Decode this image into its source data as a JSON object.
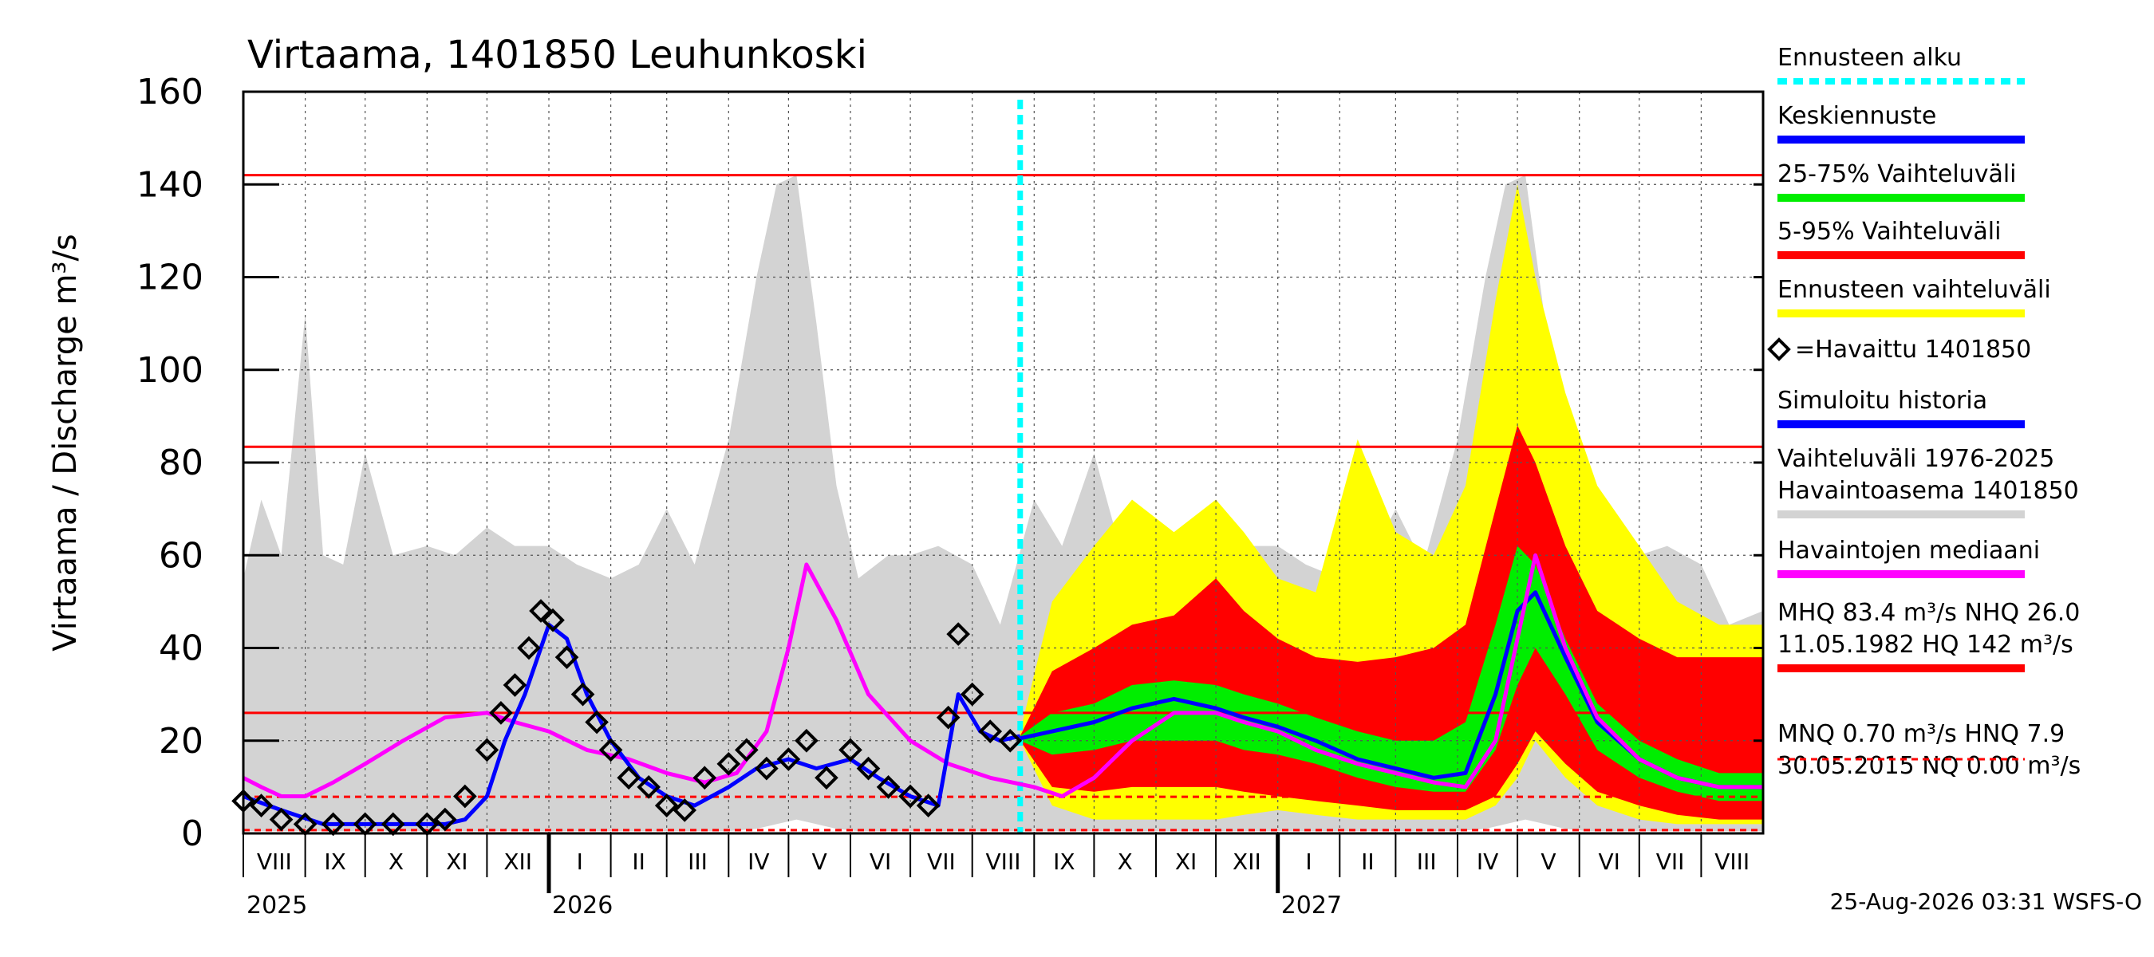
{
  "chart_data": {
    "type": "area",
    "title": "Virtaama, 1401850 Leuhunkoski",
    "ylabel": "Virtaama / Discharge    m³/s",
    "ylim": [
      0,
      160
    ],
    "yticks": [
      0,
      20,
      40,
      60,
      80,
      100,
      120,
      140,
      160
    ],
    "grid": true,
    "legend_position": "right",
    "x_start": "2025-08-01",
    "x_end": "2027-09-01",
    "forecast_start": "2026-08-25",
    "months": [
      {
        "label": "VIII",
        "start": "2025-08-01"
      },
      {
        "label": "IX",
        "start": "2025-09-01"
      },
      {
        "label": "X",
        "start": "2025-10-01"
      },
      {
        "label": "XI",
        "start": "2025-11-01"
      },
      {
        "label": "XII",
        "start": "2025-12-01"
      },
      {
        "label": "I",
        "start": "2026-01-01"
      },
      {
        "label": "II",
        "start": "2026-02-01"
      },
      {
        "label": "III",
        "start": "2026-03-01"
      },
      {
        "label": "IV",
        "start": "2026-04-01"
      },
      {
        "label": "V",
        "start": "2026-05-01"
      },
      {
        "label": "VI",
        "start": "2026-06-01"
      },
      {
        "label": "VII",
        "start": "2026-07-01"
      },
      {
        "label": "VIII",
        "start": "2026-08-01"
      },
      {
        "label": "IX",
        "start": "2026-09-01"
      },
      {
        "label": "X",
        "start": "2026-10-01"
      },
      {
        "label": "XI",
        "start": "2026-11-01"
      },
      {
        "label": "XII",
        "start": "2026-12-01"
      },
      {
        "label": "I",
        "start": "2027-01-01"
      },
      {
        "label": "II",
        "start": "2027-02-01"
      },
      {
        "label": "III",
        "start": "2027-03-01"
      },
      {
        "label": "IV",
        "start": "2027-04-01"
      },
      {
        "label": "V",
        "start": "2027-05-01"
      },
      {
        "label": "VI",
        "start": "2027-06-01"
      },
      {
        "label": "VII",
        "start": "2027-07-01"
      },
      {
        "label": "VIII",
        "start": "2027-08-01"
      }
    ],
    "years": [
      {
        "label": "2025",
        "date": "2025-08-01"
      },
      {
        "label": "2026",
        "date": "2026-01-01"
      },
      {
        "label": "2027",
        "date": "2027-01-01"
      }
    ],
    "reference_lines": [
      {
        "name": "HQ",
        "value": 142,
        "color": "#ff0000",
        "style": "solid"
      },
      {
        "name": "MHQ",
        "value": 83.4,
        "color": "#ff0000",
        "style": "solid"
      },
      {
        "name": "NHQ",
        "value": 26.0,
        "color": "#ff0000",
        "style": "solid"
      },
      {
        "name": "HNQ",
        "value": 7.9,
        "color": "#ff0000",
        "style": "dashed"
      },
      {
        "name": "MNQ",
        "value": 0.7,
        "color": "#ff0000",
        "style": "dashed"
      }
    ],
    "series": [
      {
        "name": "Vaihteluväli 1976-2025 Havaintoasema 1401850",
        "kind": "band",
        "color": "#d3d3d3",
        "x": [
          "2025-08-01",
          "2025-08-10",
          "2025-08-20",
          "2025-09-01",
          "2025-09-10",
          "2025-09-20",
          "2025-10-01",
          "2025-10-15",
          "2025-11-01",
          "2025-11-15",
          "2025-12-01",
          "2025-12-15",
          "2026-01-01",
          "2026-01-15",
          "2026-02-01",
          "2026-02-15",
          "2026-03-01",
          "2026-03-15",
          "2026-04-01",
          "2026-04-15",
          "2026-04-25",
          "2026-05-05",
          "2026-05-15",
          "2026-05-25",
          "2026-06-05",
          "2026-06-20",
          "2026-07-01",
          "2026-07-15",
          "2026-08-01",
          "2026-08-15",
          "2026-09-01",
          "2026-09-15",
          "2026-10-01",
          "2026-10-15",
          "2026-11-01",
          "2026-11-15",
          "2026-12-01",
          "2026-12-15",
          "2027-01-01",
          "2027-01-15",
          "2027-02-01",
          "2027-02-15",
          "2027-03-01",
          "2027-03-15",
          "2027-04-01",
          "2027-04-15",
          "2027-04-25",
          "2027-05-05",
          "2027-05-15",
          "2027-05-25",
          "2027-06-05",
          "2027-06-20",
          "2027-07-01",
          "2027-07-15",
          "2027-08-01",
          "2027-08-15",
          "2027-09-01"
        ],
        "low": [
          0.5,
          0.5,
          0.5,
          0.5,
          0.5,
          0.5,
          0.5,
          0.5,
          0.5,
          0.5,
          0.5,
          0.5,
          0.5,
          0.5,
          0.5,
          0.5,
          0.5,
          0.5,
          0.5,
          1,
          2,
          3,
          2,
          1,
          0.5,
          0.5,
          0.5,
          0.5,
          0.5,
          0.5,
          0.5,
          0.5,
          0.5,
          0.5,
          0.5,
          0.5,
          0.5,
          0.5,
          0.5,
          0.5,
          0.5,
          0.5,
          0.5,
          0.5,
          0.5,
          1,
          2,
          3,
          2,
          1,
          0.5,
          0.5,
          0.5,
          0.5,
          0.5,
          0.5,
          0.5
        ],
        "high": [
          55,
          72,
          60,
          112,
          60,
          58,
          82,
          60,
          62,
          60,
          66,
          62,
          62,
          58,
          55,
          58,
          70,
          58,
          85,
          120,
          140,
          142,
          110,
          75,
          55,
          60,
          60,
          62,
          58,
          45,
          72,
          62,
          82,
          60,
          62,
          60,
          66,
          62,
          62,
          58,
          55,
          58,
          70,
          58,
          85,
          120,
          140,
          142,
          110,
          75,
          55,
          60,
          60,
          62,
          58,
          45,
          48
        ]
      },
      {
        "name": "Ennusteen vaihteluväli",
        "kind": "band",
        "color": "#ffff00",
        "x": [
          "2026-08-25",
          "2026-09-10",
          "2026-10-01",
          "2026-10-20",
          "2026-11-10",
          "2026-12-01",
          "2026-12-15",
          "2027-01-01",
          "2027-01-20",
          "2027-02-10",
          "2027-03-01",
          "2027-03-20",
          "2027-04-05",
          "2027-04-20",
          "2027-05-01",
          "2027-05-10",
          "2027-05-25",
          "2027-06-10",
          "2027-07-01",
          "2027-07-20",
          "2027-08-10",
          "2027-09-01"
        ],
        "low": [
          20,
          6,
          3,
          3,
          3,
          3,
          4,
          5,
          4,
          3,
          3,
          3,
          3,
          6,
          12,
          20,
          12,
          6,
          3,
          2,
          2,
          2
        ],
        "high": [
          22,
          50,
          62,
          72,
          65,
          72,
          65,
          55,
          52,
          85,
          65,
          60,
          75,
          115,
          140,
          120,
          95,
          75,
          62,
          50,
          45,
          45
        ]
      },
      {
        "name": "5-95% Vaihteluväli",
        "kind": "band",
        "color": "#ff0000",
        "x": [
          "2026-08-25",
          "2026-09-10",
          "2026-10-01",
          "2026-10-20",
          "2026-11-10",
          "2026-12-01",
          "2026-12-15",
          "2027-01-01",
          "2027-01-20",
          "2027-02-10",
          "2027-03-01",
          "2027-03-20",
          "2027-04-05",
          "2027-04-20",
          "2027-05-01",
          "2027-05-10",
          "2027-05-25",
          "2027-06-10",
          "2027-07-01",
          "2027-07-20",
          "2027-08-10",
          "2027-09-01"
        ],
        "low": [
          20,
          10,
          9,
          10,
          10,
          10,
          9,
          8,
          7,
          6,
          5,
          5,
          5,
          8,
          15,
          22,
          15,
          9,
          6,
          4,
          3,
          3
        ],
        "high": [
          21,
          35,
          40,
          45,
          47,
          55,
          48,
          42,
          38,
          37,
          38,
          40,
          45,
          70,
          88,
          80,
          62,
          48,
          42,
          38,
          38,
          38
        ]
      },
      {
        "name": "25-75% Vaihteluväli",
        "kind": "band",
        "color": "#00ee00",
        "x": [
          "2026-08-25",
          "2026-09-10",
          "2026-10-01",
          "2026-10-20",
          "2026-11-10",
          "2026-12-01",
          "2026-12-15",
          "2027-01-01",
          "2027-01-20",
          "2027-02-10",
          "2027-03-01",
          "2027-03-20",
          "2027-04-05",
          "2027-04-20",
          "2027-05-01",
          "2027-05-10",
          "2027-05-25",
          "2027-06-10",
          "2027-07-01",
          "2027-07-20",
          "2027-08-10",
          "2027-09-01"
        ],
        "low": [
          20,
          17,
          18,
          20,
          20,
          20,
          18,
          17,
          15,
          12,
          10,
          9,
          9,
          18,
          32,
          40,
          30,
          18,
          12,
          9,
          7,
          7
        ],
        "high": [
          21,
          26,
          28,
          32,
          33,
          32,
          30,
          28,
          25,
          22,
          20,
          20,
          24,
          45,
          62,
          58,
          42,
          28,
          20,
          16,
          13,
          13
        ]
      },
      {
        "name": "Keskiennuste",
        "kind": "line",
        "color": "#0000ff",
        "x": [
          "2026-08-25",
          "2026-09-10",
          "2026-10-01",
          "2026-10-20",
          "2026-11-10",
          "2026-12-01",
          "2026-12-15",
          "2027-01-01",
          "2027-01-20",
          "2027-02-10",
          "2027-03-01",
          "2027-03-20",
          "2027-04-05",
          "2027-04-20",
          "2027-05-01",
          "2027-05-10",
          "2027-05-25",
          "2027-06-10",
          "2027-07-01",
          "2027-07-20",
          "2027-08-10",
          "2027-09-01"
        ],
        "y": [
          20.5,
          22,
          24,
          27,
          29,
          27,
          25,
          23,
          20,
          16,
          14,
          12,
          13,
          30,
          48,
          52,
          38,
          24,
          16,
          12,
          10,
          10
        ]
      },
      {
        "name": "Havaintojen mediaani",
        "kind": "line",
        "color": "#ff00ff",
        "x": [
          "2025-08-01",
          "2025-08-10",
          "2025-08-20",
          "2025-09-01",
          "2025-09-15",
          "2025-10-01",
          "2025-10-20",
          "2025-11-10",
          "2025-12-01",
          "2025-12-15",
          "2026-01-01",
          "2026-01-20",
          "2026-02-10",
          "2026-03-01",
          "2026-03-20",
          "2026-04-05",
          "2026-04-20",
          "2026-05-01",
          "2026-05-10",
          "2026-05-25",
          "2026-06-10",
          "2026-07-01",
          "2026-07-20",
          "2026-08-10",
          "2026-09-01",
          "2026-09-15",
          "2026-10-01",
          "2026-10-20",
          "2026-11-10",
          "2026-12-01",
          "2026-12-15",
          "2027-01-01",
          "2027-01-20",
          "2027-02-10",
          "2027-03-01",
          "2027-03-20",
          "2027-04-05",
          "2027-04-20",
          "2027-05-01",
          "2027-05-10",
          "2027-05-25",
          "2027-06-10",
          "2027-07-01",
          "2027-07-20",
          "2027-08-10",
          "2027-09-01"
        ],
        "y": [
          12,
          10,
          8,
          8,
          11,
          15,
          20,
          25,
          26,
          24,
          22,
          18,
          16,
          13,
          11,
          13,
          22,
          40,
          58,
          46,
          30,
          20,
          15,
          12,
          10,
          8,
          12,
          20,
          26,
          26,
          24,
          22,
          18,
          15,
          13,
          11,
          10,
          20,
          42,
          60,
          40,
          25,
          16,
          12,
          10,
          10
        ]
      },
      {
        "name": "Simuloitu historia",
        "kind": "line",
        "color": "#0000ff",
        "x": [
          "2025-08-01",
          "2025-08-20",
          "2025-09-10",
          "2025-10-01",
          "2025-10-20",
          "2025-11-10",
          "2025-11-20",
          "2025-12-01",
          "2025-12-10",
          "2025-12-20",
          "2026-01-01",
          "2026-01-10",
          "2026-01-20",
          "2026-02-01",
          "2026-02-15",
          "2026-03-01",
          "2026-03-15",
          "2026-04-01",
          "2026-04-15",
          "2026-05-01",
          "2026-05-15",
          "2026-06-01",
          "2026-06-15",
          "2026-07-01",
          "2026-07-15",
          "2026-07-25",
          "2026-08-05",
          "2026-08-15",
          "2026-08-25"
        ],
        "y": [
          8,
          5,
          2,
          2,
          2,
          2,
          3,
          8,
          20,
          30,
          45,
          42,
          30,
          20,
          12,
          8,
          6,
          10,
          14,
          16,
          14,
          16,
          12,
          8,
          6,
          30,
          22,
          20,
          21
        ]
      },
      {
        "name": "Havaittu 1401850",
        "kind": "scatter",
        "color": "#000000",
        "x": [
          "2025-08-01",
          "2025-08-10",
          "2025-08-20",
          "2025-09-01",
          "2025-09-15",
          "2025-10-01",
          "2025-10-15",
          "2025-11-01",
          "2025-11-10",
          "2025-11-20",
          "2025-12-01",
          "2025-12-08",
          "2025-12-15",
          "2025-12-22",
          "2025-12-28",
          "2026-01-03",
          "2026-01-10",
          "2026-01-18",
          "2026-01-25",
          "2026-02-01",
          "2026-02-10",
          "2026-02-20",
          "2026-03-01",
          "2026-03-10",
          "2026-03-20",
          "2026-04-01",
          "2026-04-10",
          "2026-04-20",
          "2026-05-01",
          "2026-05-10",
          "2026-05-20",
          "2026-06-01",
          "2026-06-10",
          "2026-06-20",
          "2026-07-01",
          "2026-07-10",
          "2026-07-20",
          "2026-07-25",
          "2026-08-01",
          "2026-08-10",
          "2026-08-20"
        ],
        "y": [
          7,
          6,
          3,
          2,
          2,
          2,
          2,
          2,
          3,
          8,
          18,
          26,
          32,
          40,
          48,
          46,
          38,
          30,
          24,
          18,
          12,
          10,
          6,
          5,
          12,
          15,
          18,
          14,
          16,
          20,
          12,
          18,
          14,
          10,
          8,
          6,
          25,
          43,
          30,
          22,
          20
        ]
      }
    ],
    "legend": [
      {
        "label": "Ennusteen alku",
        "color": "#00ffff",
        "style": "dotted"
      },
      {
        "label": "Keskiennuste",
        "color": "#0000ff",
        "style": "solid"
      },
      {
        "label": "25-75% Vaihteluväli",
        "color": "#00ee00",
        "style": "solid"
      },
      {
        "label": "5-95% Vaihteluväli",
        "color": "#ff0000",
        "style": "solid"
      },
      {
        "label": "Ennusteen vaihteluväli",
        "color": "#ffff00",
        "style": "solid"
      },
      {
        "label": "=Havaittu 1401850",
        "color": "#000000",
        "style": "marker"
      },
      {
        "label": "Simuloitu historia",
        "color": "#0000ff",
        "style": "solid"
      },
      {
        "label": "Vaihteluväli 1976-2025\nHavaintoasema 1401850",
        "color": "#d3d3d3",
        "style": "solid"
      },
      {
        "label": "Havaintojen mediaani",
        "color": "#ff00ff",
        "style": "solid"
      },
      {
        "label": "MHQ 83.4 m³/s NHQ 26.0\n11.05.1982 HQ  142 m³/s",
        "color": "#ff0000",
        "style": "solid"
      },
      {
        "label": "MNQ 0.70 m³/s HNQ  7.9\n30.05.2015 NQ 0.00 m³/s",
        "color": "#ff0000",
        "style": "dashed"
      }
    ],
    "footer": "25-Aug-2026 03:31 WSFS-O"
  }
}
